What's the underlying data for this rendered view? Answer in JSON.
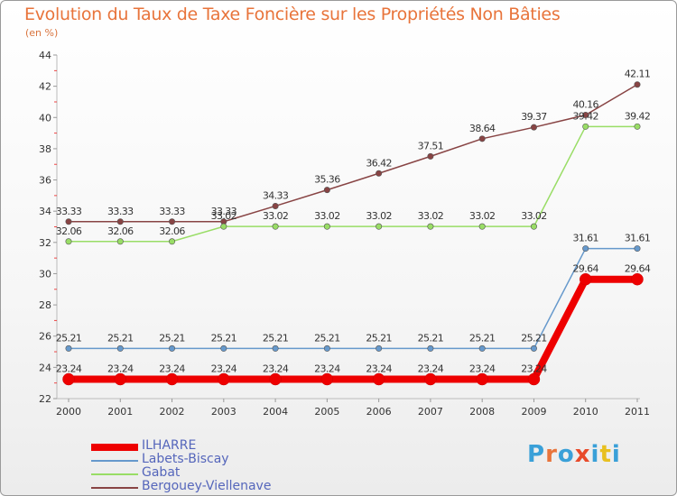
{
  "title": "Evolution du Taux de Taxe Foncière sur les Propriétés Non Bâties",
  "unit_label": "(en %)",
  "logo": {
    "text": "Proxiti",
    "colors": [
      "#3aa0d8",
      "#e8743b",
      "#3aa0d8",
      "#e84a2a",
      "#3aa0d8",
      "#e8c020",
      "#3aa0d8"
    ]
  },
  "chart_data": {
    "type": "line",
    "title": "Evolution du Taux de Taxe Foncière sur les Propriétés Non Bâties",
    "ylabel": "(en %)",
    "xlabel": "",
    "x": [
      "2000",
      "2001",
      "2002",
      "2003",
      "2004",
      "2005",
      "2006",
      "2007",
      "2008",
      "2009",
      "2010",
      "2011"
    ],
    "ylim": [
      22,
      44
    ],
    "yticks": [
      22,
      24,
      26,
      28,
      30,
      32,
      34,
      36,
      38,
      40,
      42,
      44
    ],
    "grid": false,
    "legend_position": "bottom-left",
    "series": [
      {
        "name": "ILHARRE",
        "color": "#ee0000",
        "width": 8,
        "values": [
          23.24,
          23.24,
          23.24,
          23.24,
          23.24,
          23.24,
          23.24,
          23.24,
          23.24,
          23.24,
          29.64,
          29.64
        ],
        "labels": [
          "23.24",
          "23.24",
          "23.24",
          "23.24",
          "23.24",
          "23.24",
          "23.24",
          "23.24",
          "23.24",
          "23.24",
          "29.64",
          "29.64"
        ]
      },
      {
        "name": "Labets-Biscay",
        "color": "#6699cc",
        "width": 1.5,
        "values": [
          25.21,
          25.21,
          25.21,
          25.21,
          25.21,
          25.21,
          25.21,
          25.21,
          25.21,
          25.21,
          31.61,
          31.61
        ],
        "labels": [
          "25.21",
          "25.21",
          "25.21",
          "25.21",
          "25.21",
          "25.21",
          "25.21",
          "25.21",
          "25.21",
          "25.21",
          "31.61",
          "31.61"
        ]
      },
      {
        "name": "Gabat",
        "color": "#99dd66",
        "width": 1.5,
        "values": [
          32.06,
          32.06,
          32.06,
          33.02,
          33.02,
          33.02,
          33.02,
          33.02,
          33.02,
          33.02,
          39.42,
          39.42
        ],
        "labels": [
          "32.06",
          "32.06",
          "32.06",
          "33.02",
          "33.02",
          "33.02",
          "33.02",
          "33.02",
          "33.02",
          "33.02",
          "39.42",
          "39.42"
        ]
      },
      {
        "name": "Bergouey-Viellenave",
        "color": "#884444",
        "width": 1.5,
        "values": [
          33.33,
          33.33,
          33.33,
          33.33,
          34.33,
          35.36,
          36.42,
          37.51,
          38.64,
          39.37,
          40.16,
          42.11
        ],
        "labels": [
          "33.33",
          "33.33",
          "33.33",
          "33.33",
          "34.33",
          "35.36",
          "36.42",
          "37.51",
          "38.64",
          "39.37",
          "40.16",
          "42.11"
        ]
      }
    ]
  }
}
